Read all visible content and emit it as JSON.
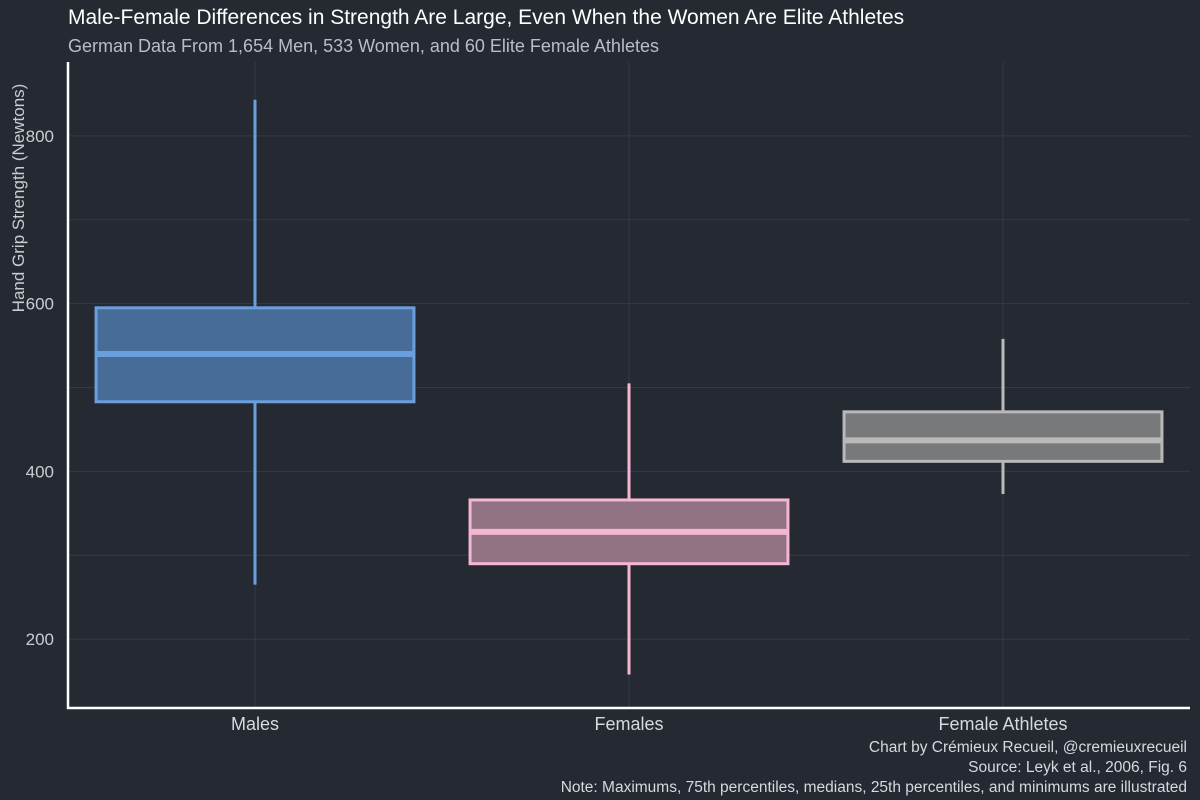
{
  "chart_data": {
    "type": "box",
    "title": "Male-Female Differences in Strength Are Large, Even When the Women Are Elite Athletes",
    "subtitle": "German Data From 1,654 Men, 533 Women, and 60 Elite Female Athletes",
    "xlabel": "",
    "ylabel": "Hand Grip Strength (Newtons)",
    "ylim": [
      118,
      888
    ],
    "yticks": [
      200,
      400,
      600,
      800
    ],
    "grid": true,
    "categories": [
      "Males",
      "Females",
      "Female Athletes"
    ],
    "boxes": [
      {
        "name": "Males",
        "min": 265,
        "q1": 483,
        "median": 540,
        "q3": 595,
        "max": 843,
        "color": "#6a9fde",
        "fill": "#486c98"
      },
      {
        "name": "Females",
        "min": 158,
        "q1": 290,
        "median": 328,
        "q3": 366,
        "max": 505,
        "color": "#f4b6d2",
        "fill": "#917384"
      },
      {
        "name": "Female Athletes",
        "min": 373,
        "q1": 412,
        "median": 437,
        "q3": 471,
        "max": 558,
        "color": "#b9b9b9",
        "fill": "#78797b"
      }
    ]
  },
  "caption": {
    "line1": "Chart by Crémieux Recueil, @cremieuxrecueil",
    "line2": "Source: Leyk et al., 2006, Fig. 6",
    "line3": "Note: Maximums, 75th percentiles, medians, 25th percentiles, and minimums are illustrated"
  },
  "colors": {
    "background": "#242932",
    "grid": "#353a44",
    "axis": "#ffffff"
  }
}
